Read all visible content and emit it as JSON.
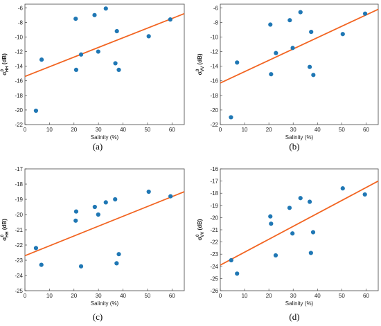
{
  "chart_data": [
    {
      "type": "scatter",
      "panel_label": "(a)",
      "xlabel": "Salinity (%)",
      "ylabel": {
        "sym": "σ",
        "sup": "0",
        "sub": "HH",
        "unit": " (dB)"
      },
      "xlim": [
        0,
        65
      ],
      "ylim": [
        -22,
        -5.5
      ],
      "xticks": [
        0,
        10,
        20,
        30,
        40,
        50,
        60
      ],
      "yticks": [
        -22,
        -20,
        -18,
        -16,
        -14,
        -12,
        -10,
        -8,
        -6
      ],
      "points": [
        {
          "x": 4.5,
          "y": -20.1
        },
        {
          "x": 6.8,
          "y": -13.1
        },
        {
          "x": 20.7,
          "y": -7.5
        },
        {
          "x": 20.9,
          "y": -14.5
        },
        {
          "x": 22.9,
          "y": -12.4
        },
        {
          "x": 28.4,
          "y": -7.0
        },
        {
          "x": 29.9,
          "y": -12.0
        },
        {
          "x": 33.0,
          "y": -6.1
        },
        {
          "x": 36.9,
          "y": -13.6
        },
        {
          "x": 37.5,
          "y": -9.2
        },
        {
          "x": 38.3,
          "y": -14.5
        },
        {
          "x": 50.5,
          "y": -9.9
        },
        {
          "x": 59.3,
          "y": -7.6
        }
      ],
      "fit": {
        "x": [
          0,
          65
        ],
        "y": [
          -15.4,
          -6.8
        ]
      },
      "colors": {
        "points": "#1f77b4",
        "fit": "#f26522"
      }
    },
    {
      "type": "scatter",
      "panel_label": "(b)",
      "xlabel": "Salinity (%)",
      "ylabel": {
        "sym": "σ",
        "sup": "0",
        "sub": "VV",
        "unit": " (dB)"
      },
      "xlim": [
        0,
        65
      ],
      "ylim": [
        -22,
        -5.5
      ],
      "xticks": [
        0,
        10,
        20,
        30,
        40,
        50,
        60
      ],
      "yticks": [
        -22,
        -20,
        -18,
        -16,
        -14,
        -12,
        -10,
        -8,
        -6
      ],
      "points": [
        {
          "x": 4.4,
          "y": -21.0
        },
        {
          "x": 6.9,
          "y": -13.5
        },
        {
          "x": 20.6,
          "y": -8.3
        },
        {
          "x": 20.9,
          "y": -15.1
        },
        {
          "x": 22.9,
          "y": -12.2
        },
        {
          "x": 28.6,
          "y": -7.7
        },
        {
          "x": 29.8,
          "y": -11.5
        },
        {
          "x": 33.0,
          "y": -6.6
        },
        {
          "x": 36.8,
          "y": -14.1
        },
        {
          "x": 37.4,
          "y": -9.3
        },
        {
          "x": 38.3,
          "y": -15.2
        },
        {
          "x": 50.4,
          "y": -9.6
        },
        {
          "x": 59.6,
          "y": -6.8
        }
      ],
      "fit": {
        "x": [
          0,
          65
        ],
        "y": [
          -16.3,
          -6.2
        ]
      },
      "colors": {
        "points": "#1f77b4",
        "fit": "#f26522"
      }
    },
    {
      "type": "scatter",
      "panel_label": "(c)",
      "xlabel": "Salinity (%)",
      "ylabel": {
        "sym": "σ",
        "sup": "0",
        "sub": "HH",
        "unit": " (dB)"
      },
      "xlim": [
        0,
        65
      ],
      "ylim": [
        -25,
        -17
      ],
      "xticks": [
        0,
        10,
        20,
        30,
        40,
        50,
        60
      ],
      "yticks": [
        -25,
        -24,
        -23,
        -22,
        -21,
        -20,
        -19,
        -18,
        -17
      ],
      "points": [
        {
          "x": 4.5,
          "y": -22.2
        },
        {
          "x": 6.7,
          "y": -23.3
        },
        {
          "x": 20.7,
          "y": -20.4
        },
        {
          "x": 20.9,
          "y": -19.8
        },
        {
          "x": 22.9,
          "y": -23.4
        },
        {
          "x": 28.5,
          "y": -19.5
        },
        {
          "x": 29.9,
          "y": -20.0
        },
        {
          "x": 33.0,
          "y": -19.2
        },
        {
          "x": 36.8,
          "y": -19.0
        },
        {
          "x": 37.4,
          "y": -23.2
        },
        {
          "x": 38.3,
          "y": -22.6
        },
        {
          "x": 50.5,
          "y": -18.5
        },
        {
          "x": 59.4,
          "y": -18.8
        }
      ],
      "fit": {
        "x": [
          0,
          65
        ],
        "y": [
          -22.7,
          -18.5
        ]
      },
      "colors": {
        "points": "#1f77b4",
        "fit": "#f26522"
      }
    },
    {
      "type": "scatter",
      "panel_label": "(d)",
      "xlabel": "Salinity (%)",
      "ylabel": {
        "sym": "σ",
        "sup": "0",
        "sub": "VV",
        "unit": " (dB)"
      },
      "xlim": [
        0,
        65
      ],
      "ylim": [
        -26,
        -16
      ],
      "xticks": [
        0,
        10,
        20,
        30,
        40,
        50,
        60
      ],
      "yticks": [
        -26,
        -25,
        -24,
        -23,
        -22,
        -21,
        -20,
        -19,
        -18,
        -17,
        -16
      ],
      "points": [
        {
          "x": 4.5,
          "y": -23.5
        },
        {
          "x": 6.9,
          "y": -24.6
        },
        {
          "x": 20.6,
          "y": -19.9
        },
        {
          "x": 20.9,
          "y": -20.5
        },
        {
          "x": 22.8,
          "y": -23.1
        },
        {
          "x": 28.5,
          "y": -19.2
        },
        {
          "x": 29.7,
          "y": -21.3
        },
        {
          "x": 33.0,
          "y": -18.4
        },
        {
          "x": 36.8,
          "y": -18.7
        },
        {
          "x": 37.3,
          "y": -22.9
        },
        {
          "x": 38.2,
          "y": -21.2
        },
        {
          "x": 50.4,
          "y": -17.6
        },
        {
          "x": 59.5,
          "y": -18.1
        }
      ],
      "fit": {
        "x": [
          0,
          65
        ],
        "y": [
          -23.9,
          -17.0
        ]
      },
      "colors": {
        "points": "#1f77b4",
        "fit": "#f26522"
      }
    }
  ]
}
